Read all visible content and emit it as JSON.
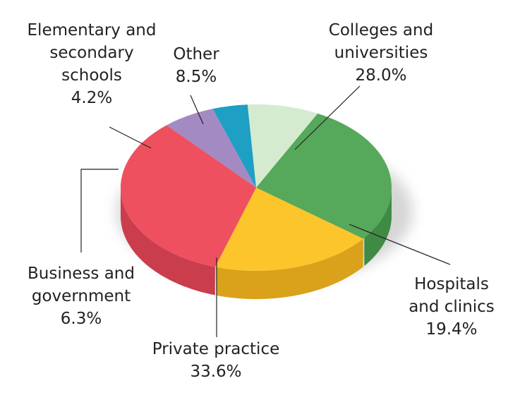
{
  "chart_data": {
    "type": "pie",
    "title": "",
    "style": "3d",
    "slices": [
      {
        "label_lines": [
          "Colleges and",
          "universities"
        ],
        "value": 28.0,
        "value_label": "28.0%",
        "color": "#56a85a",
        "side_color": "#3f8a44"
      },
      {
        "label_lines": [
          "Hospitals",
          "and clinics"
        ],
        "value": 19.4,
        "value_label": "19.4%",
        "color": "#fcc52b",
        "side_color": "#d9a21a"
      },
      {
        "label_lines": [
          "Private practice"
        ],
        "value": 33.6,
        "value_label": "33.6%",
        "color": "#ee5060",
        "side_color": "#c93d4c"
      },
      {
        "label_lines": [
          "Business and",
          "government"
        ],
        "value": 6.3,
        "value_label": "6.3%",
        "color": "#a48ac2",
        "side_color": "#86699f"
      },
      {
        "label_lines": [
          "Elementary and",
          "secondary",
          "schools"
        ],
        "value": 4.2,
        "value_label": "4.2%",
        "color": "#1e9fc4",
        "side_color": "#16809f"
      },
      {
        "label_lines": [
          "Other"
        ],
        "value": 8.5,
        "value_label": "8.5%",
        "color": "#d5ebd0",
        "side_color": "#b5cfae"
      }
    ]
  }
}
